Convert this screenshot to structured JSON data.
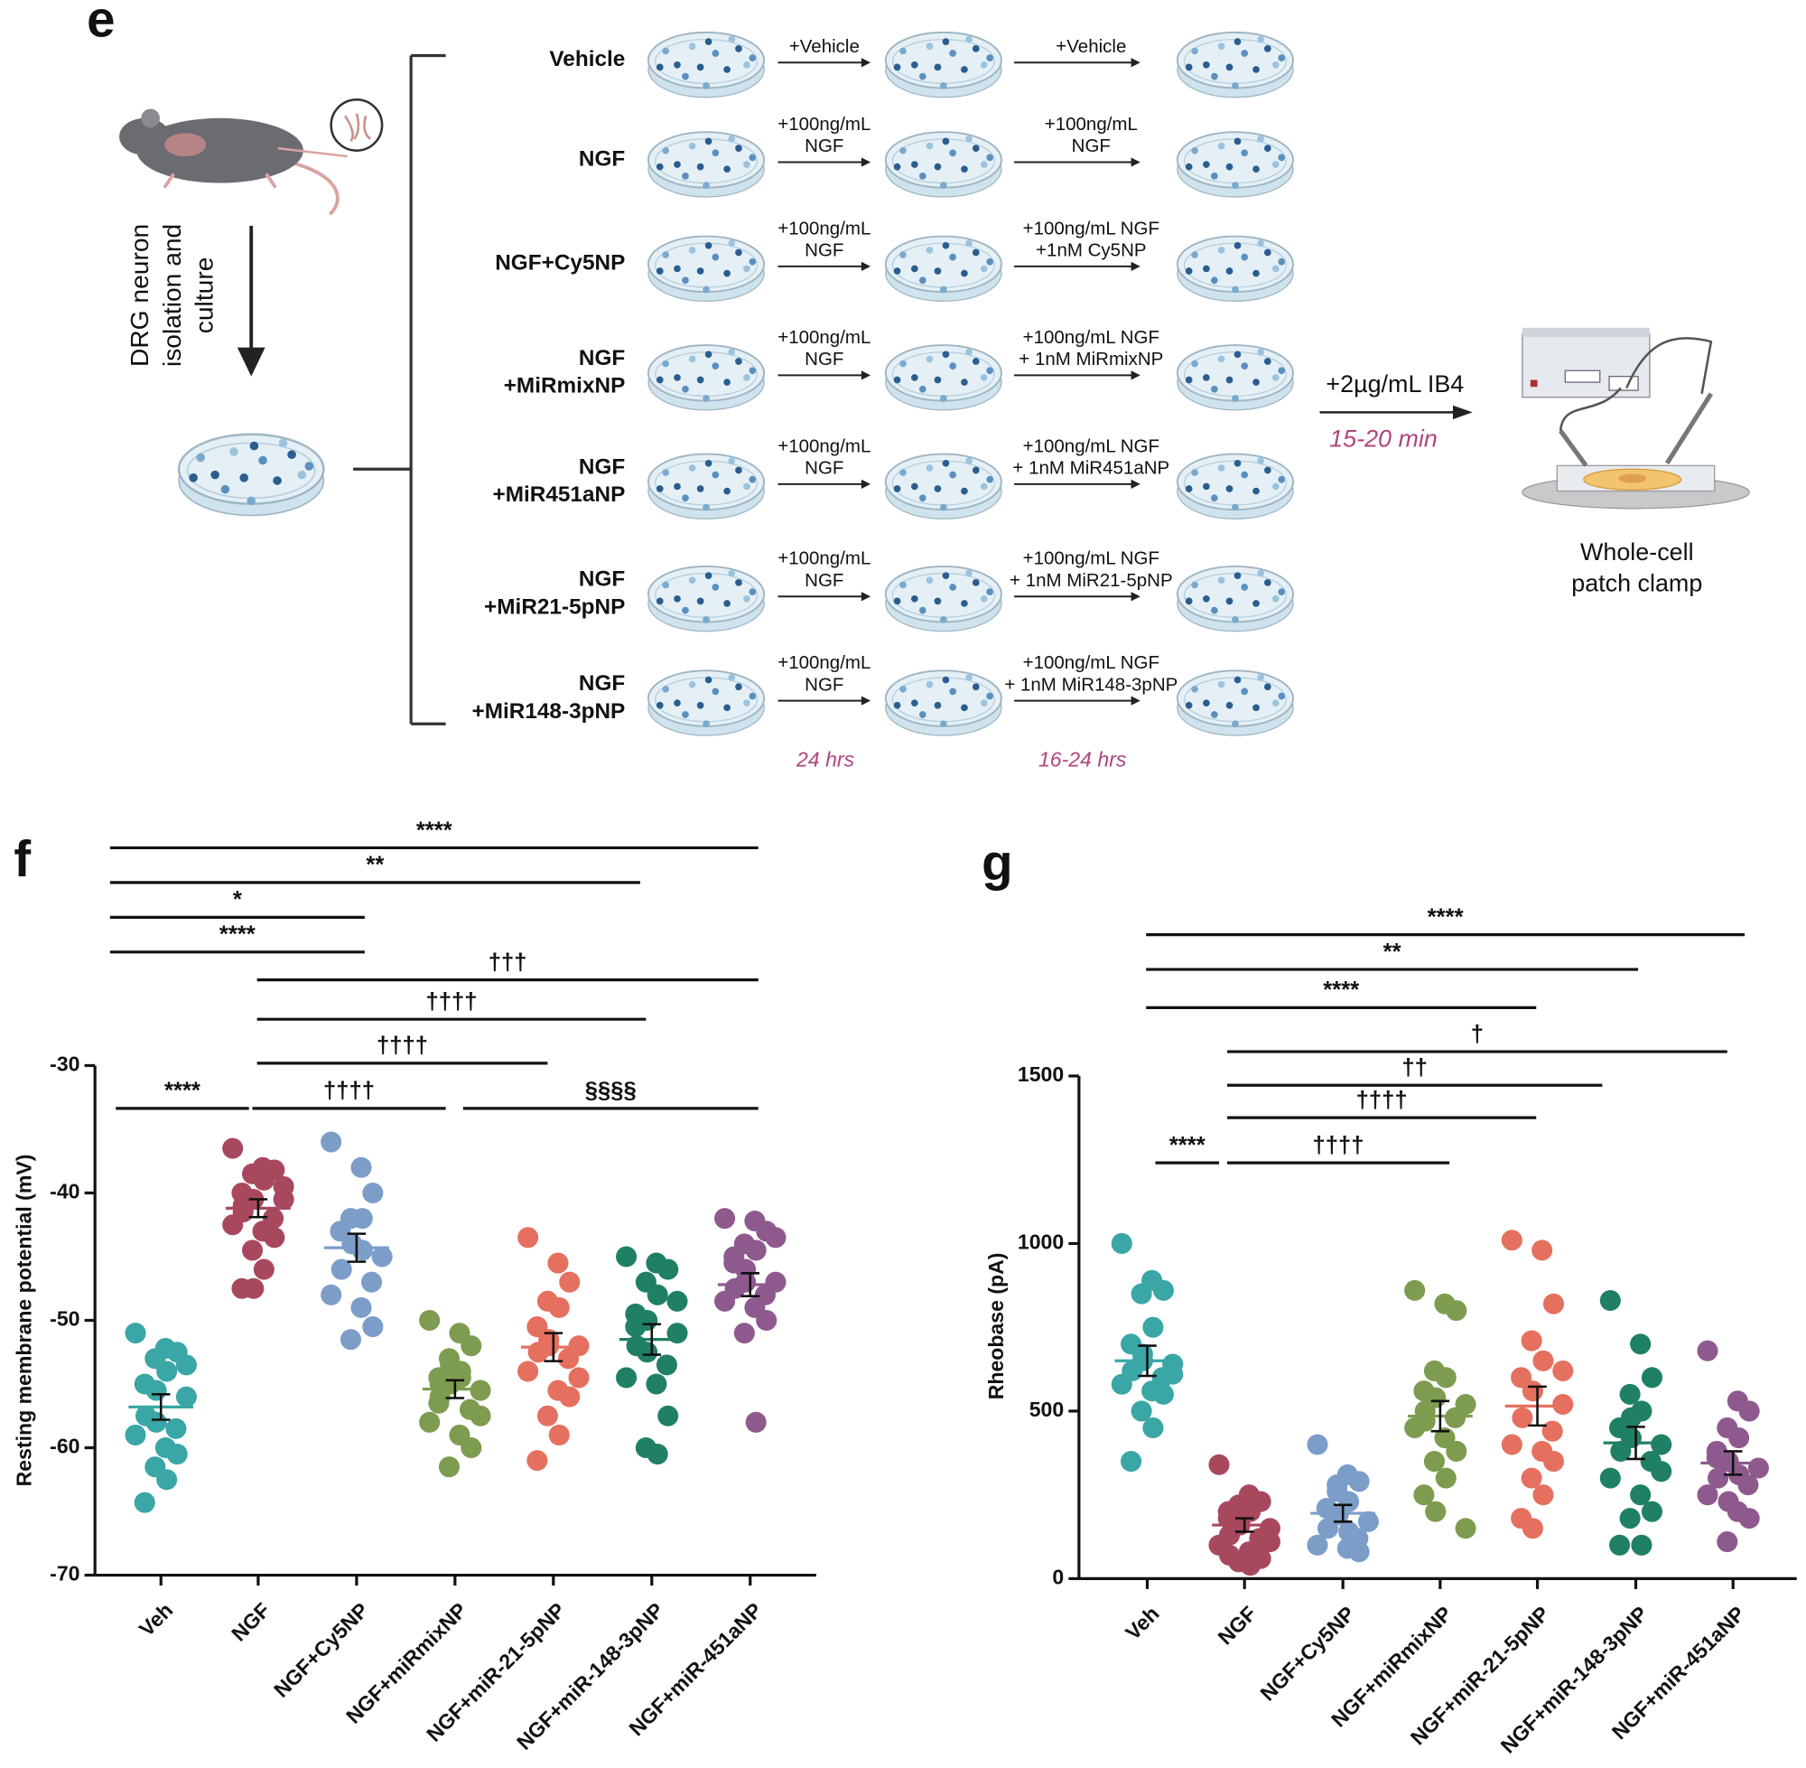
{
  "diagram": {
    "panel_label": "e",
    "source_label": [
      "DRG neuron",
      "isolation and",
      "culture"
    ],
    "groups": [
      {
        "label": [
          "Vehicle"
        ],
        "step1": [
          "+Vehicle"
        ],
        "step2": [
          "+Vehicle"
        ]
      },
      {
        "label": [
          "NGF"
        ],
        "step1": [
          "+100ng/mL",
          "NGF"
        ],
        "step2": [
          "+100ng/mL",
          "NGF"
        ]
      },
      {
        "label": [
          "NGF+Cy5NP"
        ],
        "step1": [
          "+100ng/mL",
          "NGF"
        ],
        "step2": [
          "+100ng/mL NGF",
          "+1nM Cy5NP"
        ]
      },
      {
        "label": [
          "NGF",
          "+MiRmixNP"
        ],
        "step1": [
          "+100ng/mL",
          "NGF"
        ],
        "step2": [
          "+100ng/mL NGF",
          "+ 1nM MiRmixNP"
        ]
      },
      {
        "label": [
          "NGF",
          "+MiR451aNP"
        ],
        "step1": [
          "+100ng/mL",
          "NGF"
        ],
        "step2": [
          "+100ng/mL NGF",
          "+ 1nM MiR451aNP"
        ]
      },
      {
        "label": [
          "NGF",
          "+MiR21-5pNP"
        ],
        "step1": [
          "+100ng/mL",
          "NGF"
        ],
        "step2": [
          "+100ng/mL NGF",
          "+ 1nM MiR21-5pNP"
        ]
      },
      {
        "label": [
          "NGF",
          "+MiR148-3pNP"
        ],
        "step1": [
          "+100ng/mL",
          "NGF"
        ],
        "step2": [
          "+100ng/mL NGF",
          "+ 1nM MiR148-3pNP"
        ]
      }
    ],
    "times": [
      "24 hrs",
      "16-24 hrs"
    ],
    "ib4_step": "+2µg/mL IB4",
    "ib4_time": "15-20 min",
    "endpoint": [
      "Whole-cell",
      "patch clamp"
    ]
  },
  "chart_data": [
    {
      "type": "dot",
      "panel_label": "f",
      "y_label": "Resting membrane potential (mV)",
      "categories": [
        "Veh",
        "NGF",
        "NGF+Cy5NP",
        "NGF+miRmixNP",
        "NGF+miR-21-5pNP",
        "NGF+miR-148-3pNP",
        "NGF+miR-451aNP"
      ],
      "colors": [
        "#3aa6a6",
        "#a8485f",
        "#7d9dc9",
        "#7e9c50",
        "#e5705f",
        "#1f8066",
        "#8e5a8e"
      ],
      "values": [
        [
          -51,
          -52.2,
          -52.5,
          -53,
          -54,
          -55,
          -55.5,
          -56,
          -57.5,
          -58.5,
          -59,
          -60,
          -60.5,
          -61.5,
          -62.5,
          -64.3,
          -58,
          -53.5
        ],
        [
          -36.5,
          -38,
          -38.2,
          -38.5,
          -39,
          -40,
          -40.5,
          -40.5,
          -41,
          -42,
          -42.5,
          -43,
          -43.5,
          -44.5,
          -46,
          -47.5,
          -47.5,
          -39.5,
          -41.5
        ],
        [
          -36,
          -38,
          -40,
          -42,
          -42,
          -43,
          -44,
          -45,
          -46,
          -47,
          -48,
          -49,
          -50.5,
          -51.5,
          -44.5
        ],
        [
          -50,
          -51,
          -52,
          -53,
          -54,
          -54.5,
          -55,
          -55.5,
          -56,
          -57,
          -58,
          -59,
          -60,
          -61.5,
          -54.5,
          -56.5,
          -53.5,
          -57.5,
          -55
        ],
        [
          -43.5,
          -45.5,
          -47,
          -48.5,
          -49,
          -50.5,
          -51.5,
          -52,
          -52.5,
          -53,
          -54,
          -55.5,
          -56,
          -57.5,
          -59,
          -61,
          -52,
          -54.5
        ],
        [
          -45,
          -45.5,
          -46,
          -47,
          -48,
          -49.5,
          -50,
          -51,
          -52,
          -53.5,
          -54.5,
          -55,
          -57.5,
          -60,
          -60.5,
          -50.5,
          -52.5,
          -48.5
        ],
        [
          -42,
          -42.2,
          -43,
          -44,
          -44.5,
          -45,
          -46,
          -47,
          -47.5,
          -48,
          -48.5,
          -49,
          -50,
          -51,
          -58,
          -45.5,
          -47,
          -43.5
        ]
      ],
      "means": [
        -56.8,
        -41.2,
        -44.3,
        -55.4,
        -52.1,
        -51.5,
        -47.2
      ],
      "sems": [
        1,
        0.7,
        1.1,
        0.7,
        1.1,
        1.2,
        0.9
      ],
      "ylim": [
        -70,
        -30
      ],
      "yticks": [
        -30,
        -40,
        -50,
        -60,
        -70
      ],
      "comparisons": [
        {
          "label": "****",
          "from": 0,
          "to": 6
        },
        {
          "label": "**",
          "from": 0,
          "to": 5
        },
        {
          "label": "*",
          "from": 0,
          "to": 2
        },
        {
          "label": "****",
          "from": 0,
          "to": 2
        },
        {
          "label": "†††",
          "from": 1,
          "to": 6
        },
        {
          "label": "††††",
          "from": 1,
          "to": 5
        },
        {
          "label": "††††",
          "from": 1,
          "to": 4
        },
        {
          "label": "****",
          "from": 0,
          "to": 1
        },
        {
          "label": "††††",
          "from": 1,
          "to": 3
        },
        {
          "label": "§§§§",
          "from": 3,
          "to": 6
        }
      ]
    },
    {
      "type": "dot",
      "panel_label": "g",
      "y_label": "Rheobase (pA)",
      "categories": [
        "Veh",
        "NGF",
        "NGF+Cy5NP",
        "NGF+miRmixNP",
        "NGF+miR-21-5pNP",
        "NGF+miR-148-3pNP",
        "NGF+miR-451aNP"
      ],
      "colors": [
        "#3aa6a6",
        "#a8485f",
        "#7d9dc9",
        "#7e9c50",
        "#e5705f",
        "#1f8066",
        "#8e5a8e"
      ],
      "values": [
        [
          1000,
          890,
          860,
          850,
          750,
          700,
          650,
          640,
          620,
          600,
          580,
          560,
          550,
          500,
          450,
          350,
          670,
          610
        ],
        [
          340,
          250,
          230,
          220,
          200,
          180,
          170,
          150,
          130,
          120,
          100,
          80,
          60,
          50,
          40,
          200,
          160,
          110,
          70
        ],
        [
          400,
          310,
          290,
          260,
          230,
          210,
          190,
          170,
          150,
          120,
          100,
          90,
          80,
          280,
          140
        ],
        [
          860,
          820,
          800,
          620,
          600,
          560,
          540,
          520,
          500,
          480,
          450,
          420,
          380,
          350,
          300,
          250,
          200,
          150,
          470
        ],
        [
          1010,
          980,
          820,
          710,
          650,
          600,
          560,
          520,
          480,
          440,
          400,
          380,
          350,
          300,
          250,
          180,
          150,
          620
        ],
        [
          830,
          700,
          600,
          550,
          500,
          450,
          420,
          400,
          380,
          350,
          300,
          250,
          200,
          180,
          100,
          100,
          480,
          320
        ],
        [
          680,
          530,
          500,
          450,
          420,
          380,
          350,
          330,
          300,
          280,
          250,
          200,
          180,
          110,
          310,
          360,
          230
        ]
      ],
      "means": [
        650,
        160,
        195,
        485,
        515,
        405,
        345
      ],
      "sems": [
        45,
        20,
        25,
        45,
        58,
        48,
        35
      ],
      "ylim": [
        0,
        1500
      ],
      "yticks": [
        0,
        500,
        1000,
        1500
      ],
      "comparisons": [
        {
          "label": "****",
          "from": 0,
          "to": 6
        },
        {
          "label": "**",
          "from": 0,
          "to": 5
        },
        {
          "label": "****",
          "from": 0,
          "to": 4
        },
        {
          "label": "†",
          "from": 1,
          "to": 6
        },
        {
          "label": "††",
          "from": 1,
          "to": 5
        },
        {
          "label": "††††",
          "from": 1,
          "to": 4
        },
        {
          "label": "****",
          "from": 0,
          "to": 1
        },
        {
          "label": "††††",
          "from": 1,
          "to": 3
        }
      ]
    }
  ]
}
